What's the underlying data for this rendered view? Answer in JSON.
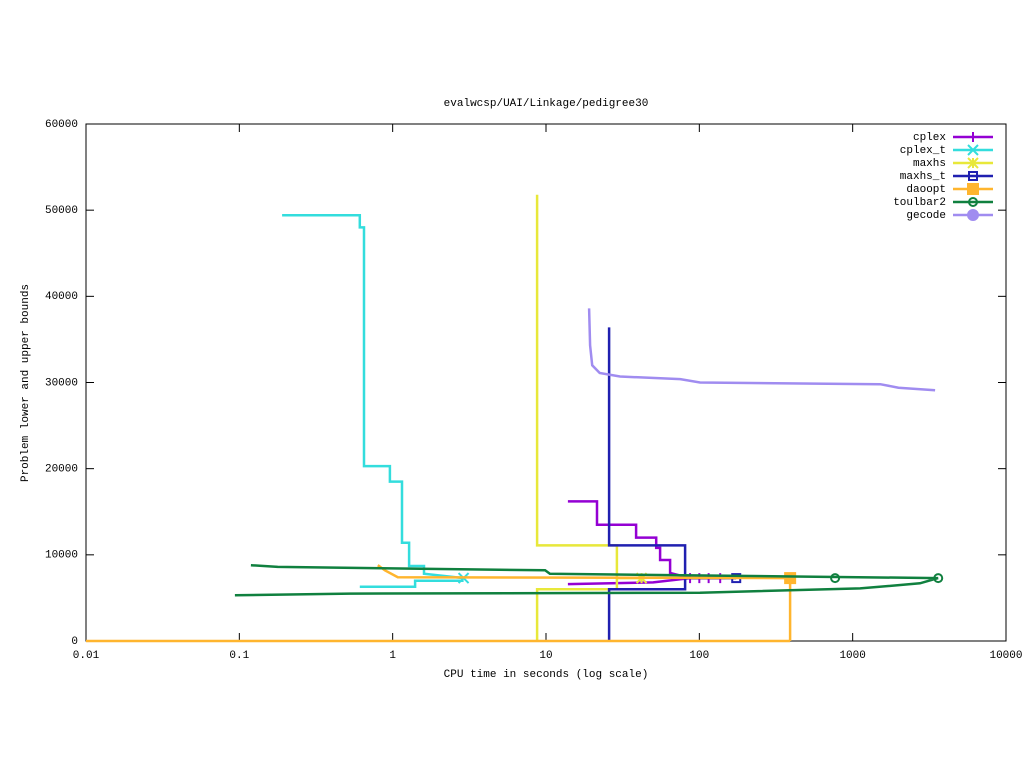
{
  "chart_data": {
    "type": "line",
    "title": "evalwcsp/UAI/Linkage/pedigree30",
    "x_label": "CPU time in seconds (log scale)",
    "y_label": "Problem lower and upper bounds",
    "xlog": true,
    "xlim": [
      0.01,
      10000
    ],
    "ylim": [
      0,
      60000
    ],
    "xticks": [
      0.01,
      0.1,
      1,
      10,
      100,
      1000,
      10000
    ],
    "yticks": [
      0,
      10000,
      20000,
      30000,
      40000,
      50000,
      60000
    ],
    "legend": "top-right",
    "series": [
      {
        "name": "cplex",
        "color": "#9400d3",
        "marker": "plus",
        "x": [
          13.9,
          21.5,
          21.5,
          38.7,
          38.7,
          52.3,
          52.3,
          55.5,
          55.5,
          64.5,
          64.5,
          87,
          136.8,
          null,
          13.9,
          50,
          87
        ],
        "values": [
          16200,
          16200,
          13500,
          13500,
          12000,
          12000,
          10800,
          10800,
          9400,
          9400,
          7900,
          7300,
          7300,
          null,
          6600,
          6800,
          7300
        ],
        "points": {
          "x": [
            87,
            100,
            115,
            136.8
          ],
          "values": [
            7300,
            7300,
            7300,
            7300
          ]
        }
      },
      {
        "name": "cplex_t",
        "color": "#33dddd",
        "marker": "cross",
        "x": [
          0.19,
          0.61,
          0.61,
          0.65,
          0.65,
          0.96,
          0.96,
          1.15,
          1.15,
          1.28,
          1.28,
          1.6,
          1.6,
          2.9,
          null,
          0.61,
          1.4,
          1.4,
          2.9
        ],
        "values": [
          49400,
          49400,
          48000,
          48000,
          20300,
          20300,
          18500,
          18500,
          11400,
          11400,
          8700,
          8700,
          7800,
          7300,
          null,
          6300,
          6300,
          7000,
          7000
        ],
        "points": {
          "x": [
            2.9
          ],
          "values": [
            7300
          ]
        }
      },
      {
        "name": "maxhs",
        "color": "#e8e83a",
        "marker": "star",
        "x": [
          8.75,
          8.75,
          29,
          29,
          42,
          null,
          8.75,
          8.75,
          29,
          29
        ],
        "values": [
          51800,
          11100,
          11100,
          7300,
          7300,
          null,
          0,
          6000,
          6000,
          7300
        ],
        "points": {
          "x": [
            42
          ],
          "values": [
            7300
          ]
        }
      },
      {
        "name": "maxhs_t",
        "color": "#2020b0",
        "marker": "square-open",
        "x": [
          25.8,
          25.8,
          80.8,
          80.8,
          174,
          null,
          25.8,
          25.8,
          80.8,
          80.8
        ],
        "values": [
          36400,
          11100,
          11100,
          7300,
          7300,
          null,
          0,
          6000,
          6000,
          7300
        ],
        "points": {
          "x": [
            174
          ],
          "values": [
            7300
          ]
        }
      },
      {
        "name": "daoopt",
        "color": "#ffb52e",
        "marker": "square",
        "x": [
          0.8,
          0.89,
          1.08,
          391,
          391,
          null,
          0.01,
          391
        ],
        "values": [
          8800,
          8200,
          7400,
          7300,
          0,
          null,
          0,
          0
        ],
        "points": {
          "x": [
            391
          ],
          "values": [
            7300
          ]
        }
      },
      {
        "name": "toulbar2",
        "color": "#10803f",
        "marker": "circle-open",
        "x": [
          0.119,
          0.178,
          9.87,
          10.6,
          3614,
          null,
          0.0936,
          0.527,
          101,
          1120,
          2750,
          3614
        ],
        "values": [
          8800,
          8600,
          8200,
          7800,
          7300,
          null,
          5300,
          5500,
          5600,
          6100,
          6700,
          7300
        ],
        "points": {
          "x": [
            768,
            3614
          ],
          "values": [
            7300,
            7300
          ]
        }
      },
      {
        "name": "gecode",
        "color": "#a08cf0",
        "marker": "circle",
        "x": [
          19.1,
          19.4,
          20.0,
          22.4,
          30.4,
          75,
          101,
          1511,
          1990,
          3450
        ],
        "values": [
          38600,
          34300,
          32000,
          31100,
          30700,
          30400,
          30000,
          29800,
          29400,
          29100
        ]
      }
    ]
  }
}
